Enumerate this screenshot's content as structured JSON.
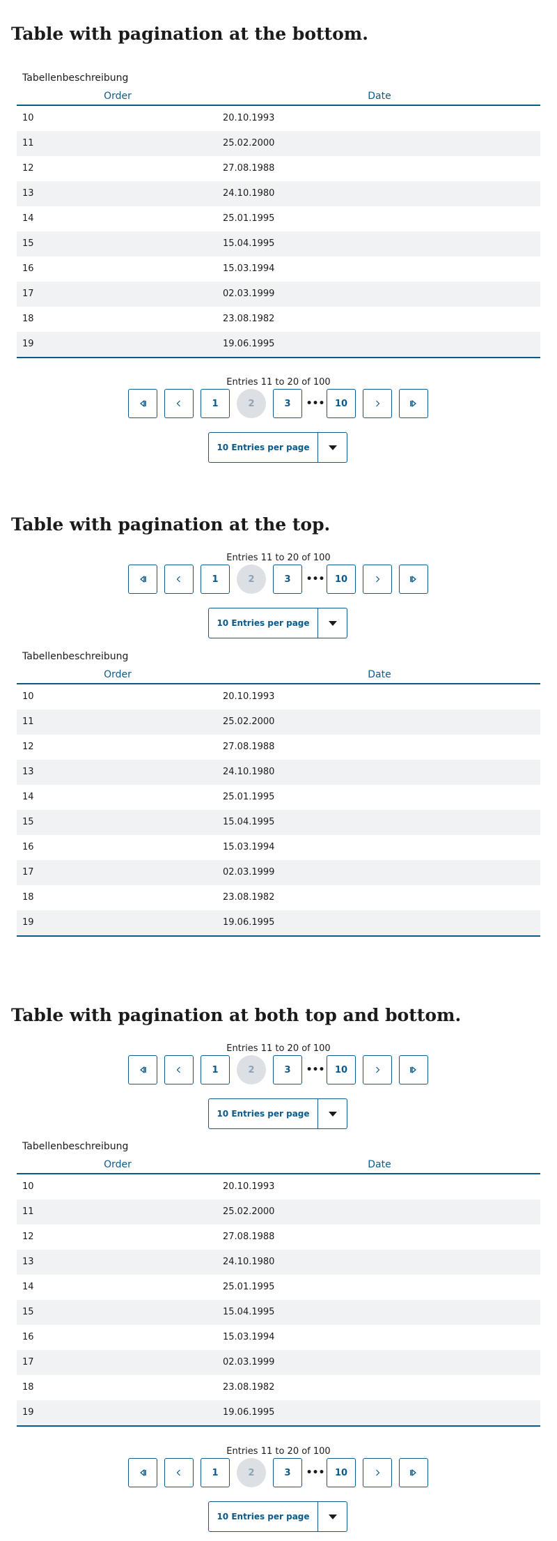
{
  "sections": [
    {
      "title": "Table with pagination at the bottom."
    },
    {
      "title": "Table with pagination at the top."
    },
    {
      "title": "Table with pagination at both top and bottom."
    }
  ],
  "table": {
    "caption": "Tabellenbeschreibung",
    "headers": [
      "Order",
      "Date"
    ],
    "rows": [
      [
        "10",
        "20.10.1993"
      ],
      [
        "11",
        "25.02.2000"
      ],
      [
        "12",
        "27.08.1988"
      ],
      [
        "13",
        "24.10.1980"
      ],
      [
        "14",
        "25.01.1995"
      ],
      [
        "15",
        "15.04.1995"
      ],
      [
        "16",
        "15.03.1994"
      ],
      [
        "17",
        "02.03.1999"
      ],
      [
        "18",
        "23.08.1982"
      ],
      [
        "19",
        "19.06.1995"
      ]
    ]
  },
  "pagination": {
    "info": "Entries 11 to 20 of 100",
    "pages": [
      "1",
      "2",
      "3",
      "10"
    ],
    "current_page": "2",
    "ellipsis": "•••",
    "per_page_label": "10 Entries per page",
    "icons": {
      "first": "first-page-icon",
      "prev": "chevron-left-icon",
      "next": "chevron-right-icon",
      "last": "last-page-icon",
      "dropdown": "caret-down-icon"
    }
  },
  "colors": {
    "accent": "#0b5a8c",
    "row_stripe": "#f1f2f4",
    "current_page_bg": "#dcdfe3"
  }
}
